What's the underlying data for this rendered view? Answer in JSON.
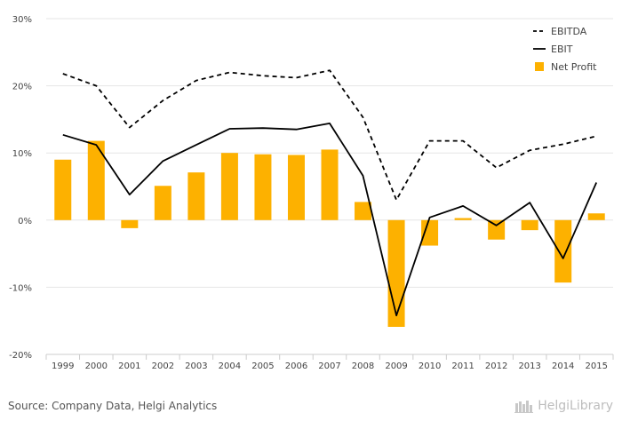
{
  "chart_data": {
    "type": "bar",
    "categories": [
      "1999",
      "2000",
      "2001",
      "2002",
      "2003",
      "2004",
      "2005",
      "2006",
      "2007",
      "2008",
      "2009",
      "2010",
      "2011",
      "2012",
      "2013",
      "2014",
      "2015"
    ],
    "series": [
      {
        "name": "EBITDA",
        "kind": "line",
        "style": "dashed",
        "color": "#000000",
        "values": [
          21.8,
          20.0,
          13.8,
          17.8,
          20.8,
          22.0,
          21.5,
          21.2,
          22.3,
          15.3,
          3.0,
          11.8,
          11.8,
          7.8,
          10.4,
          11.3,
          12.5
        ]
      },
      {
        "name": "EBIT",
        "kind": "line",
        "style": "solid",
        "color": "#000000",
        "values": [
          12.7,
          11.2,
          3.8,
          8.8,
          11.2,
          13.6,
          13.7,
          13.5,
          14.4,
          6.6,
          -14.2,
          0.4,
          2.1,
          -0.8,
          2.6,
          -5.7,
          5.6
        ]
      },
      {
        "name": "Net Profit",
        "kind": "bar",
        "color": "#FDB100",
        "values": [
          9.0,
          11.8,
          -1.2,
          5.1,
          7.1,
          10.0,
          9.8,
          9.7,
          10.5,
          2.7,
          -15.9,
          -3.8,
          0.3,
          -2.9,
          -1.5,
          -9.3,
          1.0
        ]
      }
    ],
    "y_ticks": [
      "-20%",
      "-10%",
      "0%",
      "10%",
      "20%",
      "30%"
    ],
    "ylim": [
      -20,
      30
    ],
    "grid": true,
    "legend_position": "top-right"
  },
  "footer": {
    "source": "Source: Company Data, Helgi Analytics",
    "brand": "HelgiLibrary"
  }
}
